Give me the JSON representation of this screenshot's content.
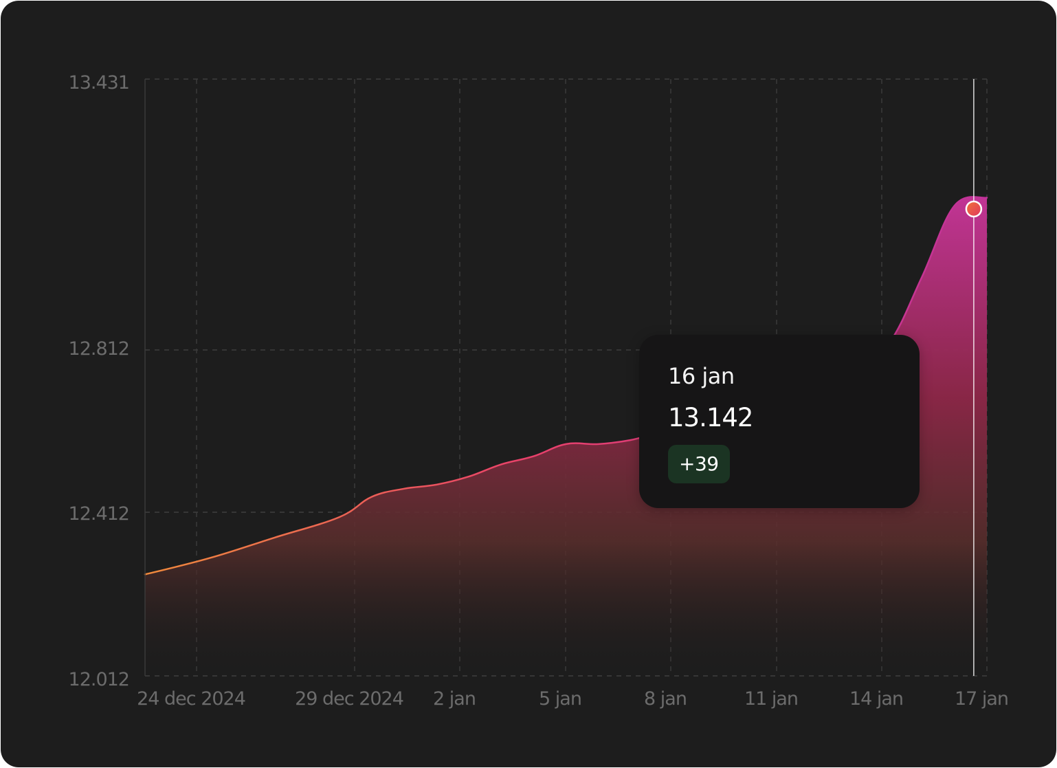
{
  "chart_data": {
    "type": "area",
    "y_ticks": [
      "13.431",
      "12.812",
      "12.412",
      "12.012"
    ],
    "y_tick_values": [
      13.431,
      12.812,
      12.412,
      12.012
    ],
    "ylim": [
      12.012,
      13.431
    ],
    "x_tick_labels": [
      "24 dec 2024",
      "29 dec 2024",
      "2 jan",
      "5 jan",
      "8 jan",
      "11 jan",
      "14 jan",
      "17 jan"
    ],
    "x": [
      "2024-12-22",
      "2024-12-24",
      "2024-12-26",
      "2024-12-28",
      "2024-12-29",
      "2024-12-30",
      "2024-12-31",
      "2025-01-01",
      "2025-01-02",
      "2025-01-03",
      "2025-01-04",
      "2025-01-05",
      "2025-01-06",
      "2025-01-07",
      "2025-01-08",
      "2025-01-09",
      "2025-01-10",
      "2025-01-11",
      "2025-01-12",
      "2025-01-13",
      "2025-01-14",
      "2025-01-15",
      "2025-01-16",
      "2025-01-17"
    ],
    "y": [
      12.26,
      12.3,
      12.35,
      12.4,
      12.45,
      12.47,
      12.48,
      12.5,
      12.53,
      12.55,
      12.58,
      12.58,
      12.59,
      12.61,
      12.62,
      12.64,
      12.66,
      12.69,
      12.73,
      12.78,
      12.83,
      12.98,
      13.142,
      13.16
    ],
    "grid": true,
    "highlight": {
      "date_label": "16 jan",
      "value": "13.142",
      "change": "+39"
    },
    "colors": {
      "line_start": "#f08a3c",
      "line_mid": "#e9416a",
      "line_end": "#c0329a",
      "marker": "#ef4d50"
    }
  }
}
